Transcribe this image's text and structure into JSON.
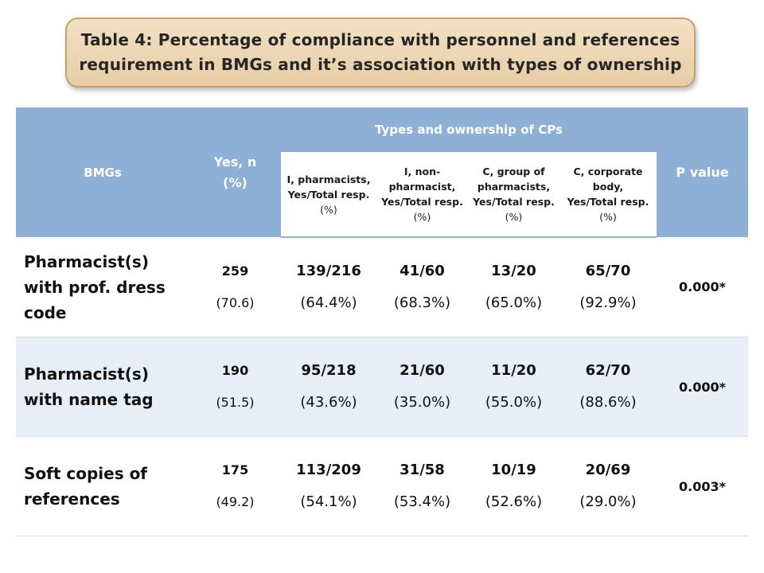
{
  "title": "Table 4: Percentage of compliance  with personnel and references requirement in BMGs and it’s association with types of ownership",
  "header": {
    "bmgs": "BMGs",
    "yes": "Yes, n (%)",
    "types_group": "Types and ownership of CPs",
    "p_value": "P value",
    "subcolumns": [
      {
        "line1": "I, pharmacists,",
        "line2": "Yes/Total resp.",
        "pct": "(%)"
      },
      {
        "line1": "I, non-pharmacist,",
        "line2": "Yes/Total resp.",
        "pct": "(%)"
      },
      {
        "line1": "C, group of pharmacists,",
        "line2": "Yes/Total resp.",
        "pct": "(%)"
      },
      {
        "line1": "C, corporate body,",
        "line2": "Yes/Total resp.",
        "pct": "(%)"
      }
    ]
  },
  "rows": [
    {
      "label": "Pharmacist(s) with prof. dress code",
      "yes_n": "259",
      "yes_pct": "(70.6)",
      "cols": [
        {
          "ratio": "139/216",
          "pct": "(64.4%)"
        },
        {
          "ratio": "41/60",
          "pct": "(68.3%)"
        },
        {
          "ratio": "13/20",
          "pct": "(65.0%)"
        },
        {
          "ratio": "65/70",
          "pct": "(92.9%)"
        }
      ],
      "p": "0.000*"
    },
    {
      "label": "Pharmacist(s) with name tag",
      "yes_n": "190",
      "yes_pct": "(51.5)",
      "cols": [
        {
          "ratio": "95/218",
          "pct": "(43.6%)"
        },
        {
          "ratio": "21/60",
          "pct": "(35.0%)"
        },
        {
          "ratio": "11/20",
          "pct": "(55.0%)"
        },
        {
          "ratio": "62/70",
          "pct": "(88.6%)"
        }
      ],
      "p": "0.000*"
    },
    {
      "label": "Soft copies of references",
      "yes_n": "175",
      "yes_pct": "(49.2)",
      "cols": [
        {
          "ratio": "113/209",
          "pct": "(54.1%)"
        },
        {
          "ratio": "31/58",
          "pct": "(53.4%)"
        },
        {
          "ratio": "10/19",
          "pct": "(52.6%)"
        },
        {
          "ratio": "20/69",
          "pct": "(29.0%)"
        }
      ],
      "p": "0.003*"
    }
  ],
  "colors": {
    "header_blue": "#8eb0d6",
    "row_alt": "#e8eef6",
    "title_fill": "#e6cda5",
    "title_border": "#c99e6a"
  }
}
